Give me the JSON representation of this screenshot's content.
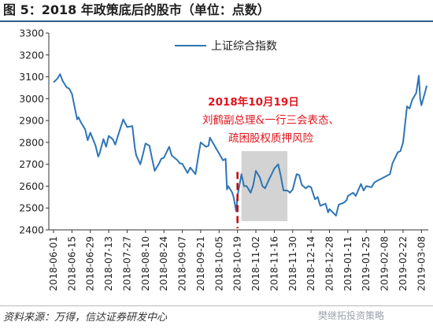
{
  "header": {
    "title": "图 5：2018 年政策底后的股市（单位：点数）"
  },
  "footer": {
    "source": "资料来源：万得，信达证券研发中心",
    "watermark": "樊继拓投资策略"
  },
  "colors": {
    "series": "#2e75b6",
    "event_line": "#c00000",
    "annotation": "#e0141c",
    "shade": "#d3d3d3"
  },
  "chart_data": {
    "type": "line",
    "title": "",
    "xlabel": "",
    "ylabel": "",
    "ylim": [
      2400,
      3300
    ],
    "yticks": [
      2400,
      2500,
      2600,
      2700,
      2800,
      2900,
      3000,
      3100,
      3200,
      3300
    ],
    "xticks": [
      "2018-06-01",
      "2018-06-15",
      "2018-06-29",
      "2018-07-13",
      "2018-07-27",
      "2018-08-10",
      "2018-08-24",
      "2018-09-07",
      "2018-09-21",
      "2018-10-05",
      "2018-10-19",
      "2018-11-02",
      "2018-11-16",
      "2018-11-30",
      "2018-12-14",
      "2018-12-28",
      "2019-01-11",
      "2019-01-25",
      "2019-02-08",
      "2019-02-22",
      "2019-03-08"
    ],
    "grid": false,
    "legend": {
      "position": "top-left",
      "entries": [
        "上证综合指数"
      ]
    },
    "series": [
      {
        "name": "上证综合指数",
        "x": [
          "2018-06-01",
          "2018-06-04",
          "2018-06-06",
          "2018-06-08",
          "2018-06-11",
          "2018-06-13",
          "2018-06-15",
          "2018-06-19",
          "2018-06-20",
          "2018-06-22",
          "2018-06-25",
          "2018-06-27",
          "2018-06-29",
          "2018-07-03",
          "2018-07-05",
          "2018-07-06",
          "2018-07-09",
          "2018-07-11",
          "2018-07-13",
          "2018-07-16",
          "2018-07-18",
          "2018-07-20",
          "2018-07-24",
          "2018-07-26",
          "2018-07-27",
          "2018-07-31",
          "2018-08-02",
          "2018-08-03",
          "2018-08-06",
          "2018-08-08",
          "2018-08-10",
          "2018-08-13",
          "2018-08-15",
          "2018-08-17",
          "2018-08-20",
          "2018-08-22",
          "2018-08-24",
          "2018-08-28",
          "2018-08-30",
          "2018-09-03",
          "2018-09-05",
          "2018-09-07",
          "2018-09-11",
          "2018-09-13",
          "2018-09-17",
          "2018-09-19",
          "2018-09-21",
          "2018-09-25",
          "2018-09-27",
          "2018-09-28",
          "2018-10-08",
          "2018-10-10",
          "2018-10-11",
          "2018-10-12",
          "2018-10-15",
          "2018-10-16",
          "2018-10-18",
          "2018-10-19",
          "2018-10-22",
          "2018-10-24",
          "2018-10-26",
          "2018-10-29",
          "2018-10-31",
          "2018-11-02",
          "2018-11-05",
          "2018-11-07",
          "2018-11-09",
          "2018-11-12",
          "2018-11-14",
          "2018-11-16",
          "2018-11-19",
          "2018-11-21",
          "2018-11-23",
          "2018-11-26",
          "2018-11-28",
          "2018-11-30",
          "2018-12-03",
          "2018-12-05",
          "2018-12-07",
          "2018-12-10",
          "2018-12-12",
          "2018-12-14",
          "2018-12-17",
          "2018-12-19",
          "2018-12-21",
          "2018-12-25",
          "2018-12-27",
          "2018-12-28",
          "2019-01-02",
          "2019-01-04",
          "2019-01-08",
          "2019-01-10",
          "2019-01-11",
          "2019-01-15",
          "2019-01-17",
          "2019-01-21",
          "2019-01-23",
          "2019-01-25",
          "2019-01-29",
          "2019-01-31",
          "2019-02-01",
          "2019-02-12",
          "2019-02-14",
          "2019-02-18",
          "2019-02-20",
          "2019-02-22",
          "2019-02-25",
          "2019-02-27",
          "2019-03-01",
          "2019-03-04",
          "2019-03-06",
          "2019-03-07",
          "2019-03-08",
          "2019-03-11",
          "2019-03-12"
        ],
        "values": [
          3075,
          3092,
          3112,
          3080,
          3052,
          3045,
          3022,
          2905,
          2915,
          2890,
          2860,
          2810,
          2845,
          2785,
          2735,
          2748,
          2815,
          2780,
          2830,
          2815,
          2790,
          2830,
          2905,
          2882,
          2870,
          2875,
          2770,
          2740,
          2700,
          2745,
          2795,
          2785,
          2725,
          2670,
          2700,
          2725,
          2730,
          2780,
          2740,
          2720,
          2705,
          2702,
          2660,
          2685,
          2655,
          2730,
          2800,
          2780,
          2785,
          2822,
          2718,
          2725,
          2585,
          2600,
          2570,
          2550,
          2485,
          2555,
          2655,
          2600,
          2600,
          2570,
          2605,
          2670,
          2640,
          2600,
          2590,
          2630,
          2655,
          2680,
          2700,
          2645,
          2580,
          2580,
          2570,
          2585,
          2655,
          2650,
          2605,
          2590,
          2600,
          2595,
          2540,
          2550,
          2510,
          2520,
          2480,
          2495,
          2465,
          2515,
          2525,
          2535,
          2555,
          2570,
          2555,
          2610,
          2580,
          2600,
          2595,
          2615,
          2620,
          2655,
          2705,
          2755,
          2760,
          2800,
          2965,
          2955,
          2995,
          3025,
          3105,
          3000,
          2970,
          3035,
          3060
        ]
      }
    ],
    "annotations": [
      {
        "kind": "vline",
        "x": "2018-10-19",
        "style": "dashed"
      },
      {
        "kind": "shade",
        "x_start": "2018-10-22",
        "x_end": "2018-11-26",
        "y_range": [
          2440,
          2760
        ]
      },
      {
        "kind": "text",
        "lines": [
          "2018年10月19日",
          "刘鹤副总理&一行三会表态、",
          "疏困股权质押风险"
        ]
      }
    ]
  }
}
